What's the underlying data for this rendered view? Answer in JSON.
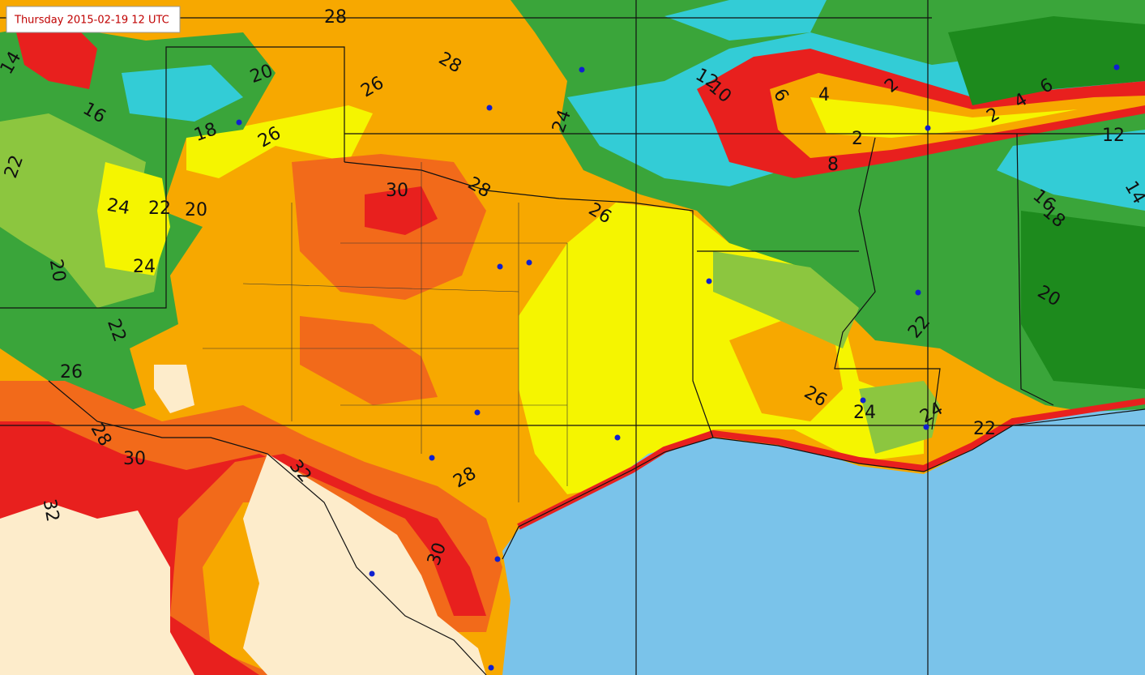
{
  "header": {
    "title": "Thursday 2015-02-19 12 UTC"
  },
  "contour_labels": [
    28,
    14,
    20,
    26,
    28,
    16,
    18,
    26,
    22,
    24,
    22,
    20,
    24,
    20,
    30,
    28,
    24,
    26,
    12,
    10,
    6,
    4,
    2,
    2,
    4,
    2,
    6,
    8,
    12,
    14,
    16,
    18,
    20,
    22,
    26,
    24,
    24,
    22,
    26,
    28,
    30,
    32,
    32,
    28,
    30,
    22
  ]
}
